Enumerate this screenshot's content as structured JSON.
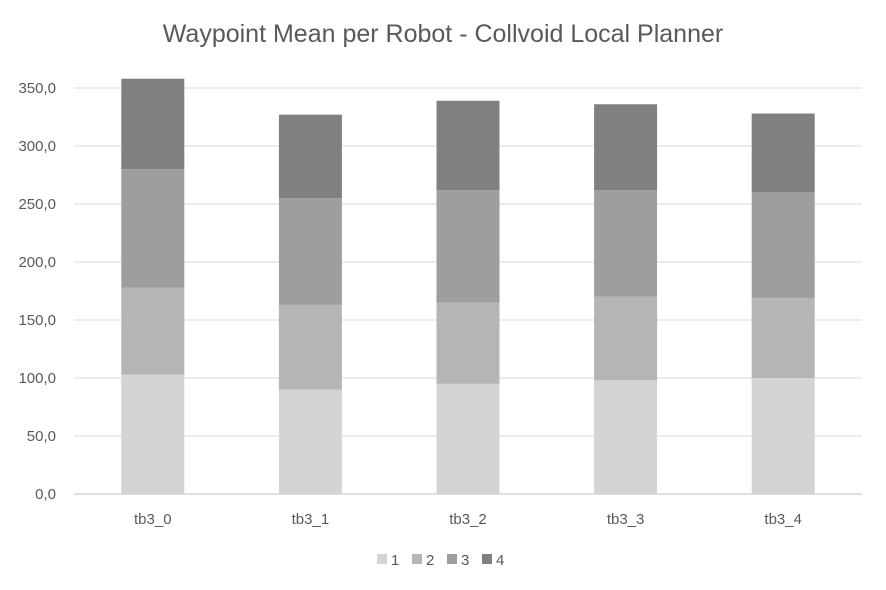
{
  "chart_data": {
    "type": "bar",
    "stacked": true,
    "title": "Waypoint Mean per Robot - Collvoid Local Planner",
    "xlabel": "",
    "ylabel": "",
    "categories": [
      "tb3_0",
      "tb3_1",
      "tb3_2",
      "tb3_3",
      "tb3_4"
    ],
    "ylim": [
      0,
      350
    ],
    "yticks": [
      0,
      50,
      100,
      150,
      200,
      250,
      300,
      350
    ],
    "ytick_labels": [
      "0,0",
      "50,0",
      "100,0",
      "150,0",
      "200,0",
      "250,0",
      "300,0",
      "350,0"
    ],
    "grid": true,
    "legend_position": "bottom",
    "series": [
      {
        "name": "1",
        "color": "#d4d4d4",
        "values": [
          103,
          90,
          95,
          98,
          100
        ]
      },
      {
        "name": "2",
        "color": "#b5b5b5",
        "values": [
          75,
          73,
          70,
          72,
          69
        ]
      },
      {
        "name": "3",
        "color": "#9e9e9e",
        "values": [
          102,
          92,
          97,
          92,
          91
        ]
      },
      {
        "name": "4",
        "color": "#808080",
        "values": [
          78,
          72,
          77,
          74,
          68
        ]
      }
    ]
  }
}
